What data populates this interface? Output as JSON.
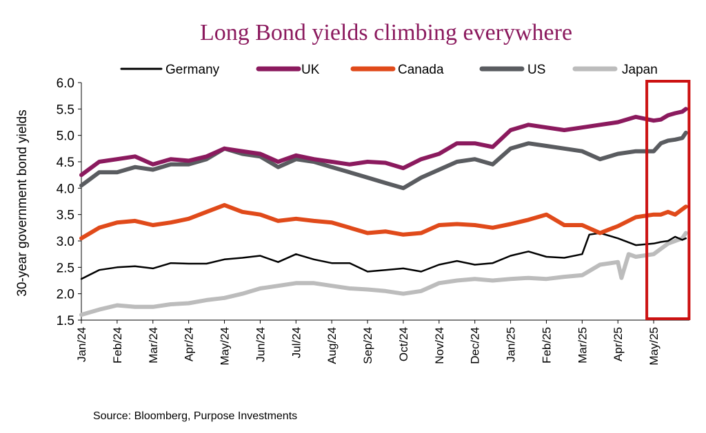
{
  "chart_data": {
    "type": "line",
    "title": "Long Bond yields climbing everywhere",
    "ylabel": "30-year government bond yields",
    "xlabel": "",
    "ylim": [
      1.5,
      6.0
    ],
    "ytick_labels": [
      "1.5",
      "2.0",
      "2.5",
      "3.0",
      "3.5",
      "4.0",
      "4.5",
      "5.0",
      "5.5",
      "6.0"
    ],
    "xtick_labels": [
      "Jan/24",
      "Feb/24",
      "Mar/24",
      "Apr/24",
      "May/24",
      "Jun/24",
      "Jul/24",
      "Aug/24",
      "Sep/24",
      "Oct/24",
      "Nov/24",
      "Dec/24",
      "Jan/25",
      "Feb/25",
      "Mar/25",
      "Apr/25",
      "May/25"
    ],
    "source": "Source: Bloomberg, Purpose Investments",
    "highlight": {
      "x_range": [
        16.0,
        16.95
      ],
      "color": "#cc1111"
    },
    "series": [
      {
        "name": "Germany",
        "color": "#000000",
        "x": [
          0,
          0.5,
          1,
          1.5,
          2,
          2.5,
          3,
          3.5,
          4,
          4.5,
          5,
          5.5,
          6,
          6.5,
          7,
          7.5,
          8,
          8.5,
          9,
          9.5,
          10,
          10.5,
          11,
          11.5,
          12,
          12.5,
          13,
          13.5,
          14,
          14.2,
          14.5,
          15,
          15.5,
          16,
          16.2,
          16.4,
          16.6,
          16.8,
          16.9
        ],
        "values": [
          2.28,
          2.45,
          2.5,
          2.52,
          2.48,
          2.58,
          2.57,
          2.57,
          2.65,
          2.68,
          2.72,
          2.6,
          2.75,
          2.65,
          2.58,
          2.58,
          2.42,
          2.45,
          2.48,
          2.42,
          2.55,
          2.62,
          2.55,
          2.58,
          2.72,
          2.8,
          2.7,
          2.68,
          2.75,
          3.12,
          3.15,
          3.05,
          2.92,
          2.95,
          2.98,
          3.0,
          3.08,
          3.02,
          3.05
        ]
      },
      {
        "name": "UK",
        "color": "#8b1a5e",
        "x": [
          0,
          0.5,
          1,
          1.5,
          2,
          2.5,
          3,
          3.5,
          4,
          4.5,
          5,
          5.5,
          6,
          6.5,
          7,
          7.5,
          8,
          8.5,
          9,
          9.5,
          10,
          10.5,
          11,
          11.5,
          12,
          12.5,
          13,
          13.5,
          14,
          14.5,
          15,
          15.5,
          16,
          16.2,
          16.4,
          16.6,
          16.8,
          16.9
        ],
        "values": [
          4.25,
          4.5,
          4.55,
          4.6,
          4.45,
          4.55,
          4.52,
          4.6,
          4.75,
          4.7,
          4.65,
          4.5,
          4.62,
          4.55,
          4.5,
          4.45,
          4.5,
          4.48,
          4.38,
          4.55,
          4.65,
          4.85,
          4.85,
          4.78,
          5.1,
          5.2,
          5.15,
          5.1,
          5.15,
          5.2,
          5.25,
          5.35,
          5.28,
          5.3,
          5.38,
          5.42,
          5.45,
          5.5
        ]
      },
      {
        "name": "Canada",
        "color": "#e04a1a",
        "x": [
          0,
          0.5,
          1,
          1.5,
          2,
          2.5,
          3,
          3.5,
          4,
          4.5,
          5,
          5.5,
          6,
          6.5,
          7,
          7.5,
          8,
          8.5,
          9,
          9.5,
          10,
          10.5,
          11,
          11.5,
          12,
          12.5,
          13,
          13.5,
          14,
          14.5,
          15,
          15.5,
          16,
          16.2,
          16.4,
          16.6,
          16.8,
          16.9
        ],
        "values": [
          3.05,
          3.25,
          3.35,
          3.38,
          3.3,
          3.35,
          3.42,
          3.55,
          3.68,
          3.55,
          3.5,
          3.38,
          3.42,
          3.38,
          3.35,
          3.25,
          3.15,
          3.18,
          3.12,
          3.15,
          3.3,
          3.32,
          3.3,
          3.25,
          3.32,
          3.4,
          3.5,
          3.3,
          3.3,
          3.15,
          3.28,
          3.45,
          3.5,
          3.5,
          3.55,
          3.5,
          3.6,
          3.65
        ]
      },
      {
        "name": "US",
        "color": "#5a5c60",
        "x": [
          0,
          0.5,
          1,
          1.5,
          2,
          2.5,
          3,
          3.5,
          4,
          4.5,
          5,
          5.5,
          6,
          6.5,
          7,
          7.5,
          8,
          8.5,
          9,
          9.5,
          10,
          10.5,
          11,
          11.5,
          12,
          12.5,
          13,
          13.5,
          14,
          14.5,
          15,
          15.5,
          16,
          16.2,
          16.4,
          16.6,
          16.8,
          16.9
        ],
        "values": [
          4.05,
          4.3,
          4.3,
          4.4,
          4.35,
          4.45,
          4.45,
          4.55,
          4.75,
          4.65,
          4.6,
          4.4,
          4.55,
          4.5,
          4.4,
          4.3,
          4.2,
          4.1,
          4.0,
          4.2,
          4.35,
          4.5,
          4.55,
          4.45,
          4.75,
          4.85,
          4.8,
          4.75,
          4.7,
          4.55,
          4.65,
          4.7,
          4.7,
          4.85,
          4.9,
          4.92,
          4.95,
          5.05
        ]
      },
      {
        "name": "Japan",
        "color": "#bcbcbc",
        "x": [
          0,
          0.5,
          1,
          1.5,
          2,
          2.5,
          3,
          3.5,
          4,
          4.5,
          5,
          5.5,
          6,
          6.5,
          7,
          7.5,
          8,
          8.5,
          9,
          9.5,
          10,
          10.5,
          11,
          11.5,
          12,
          12.5,
          13,
          13.5,
          14,
          14.5,
          15,
          15.1,
          15.3,
          15.5,
          16,
          16.2,
          16.4,
          16.6,
          16.8,
          16.9
        ],
        "values": [
          1.6,
          1.7,
          1.78,
          1.75,
          1.75,
          1.8,
          1.82,
          1.88,
          1.92,
          2.0,
          2.1,
          2.15,
          2.2,
          2.2,
          2.15,
          2.1,
          2.08,
          2.05,
          2.0,
          2.05,
          2.2,
          2.25,
          2.28,
          2.25,
          2.28,
          2.3,
          2.28,
          2.32,
          2.35,
          2.55,
          2.6,
          2.3,
          2.75,
          2.7,
          2.75,
          2.85,
          2.95,
          3.0,
          3.05,
          3.15
        ]
      }
    ]
  }
}
